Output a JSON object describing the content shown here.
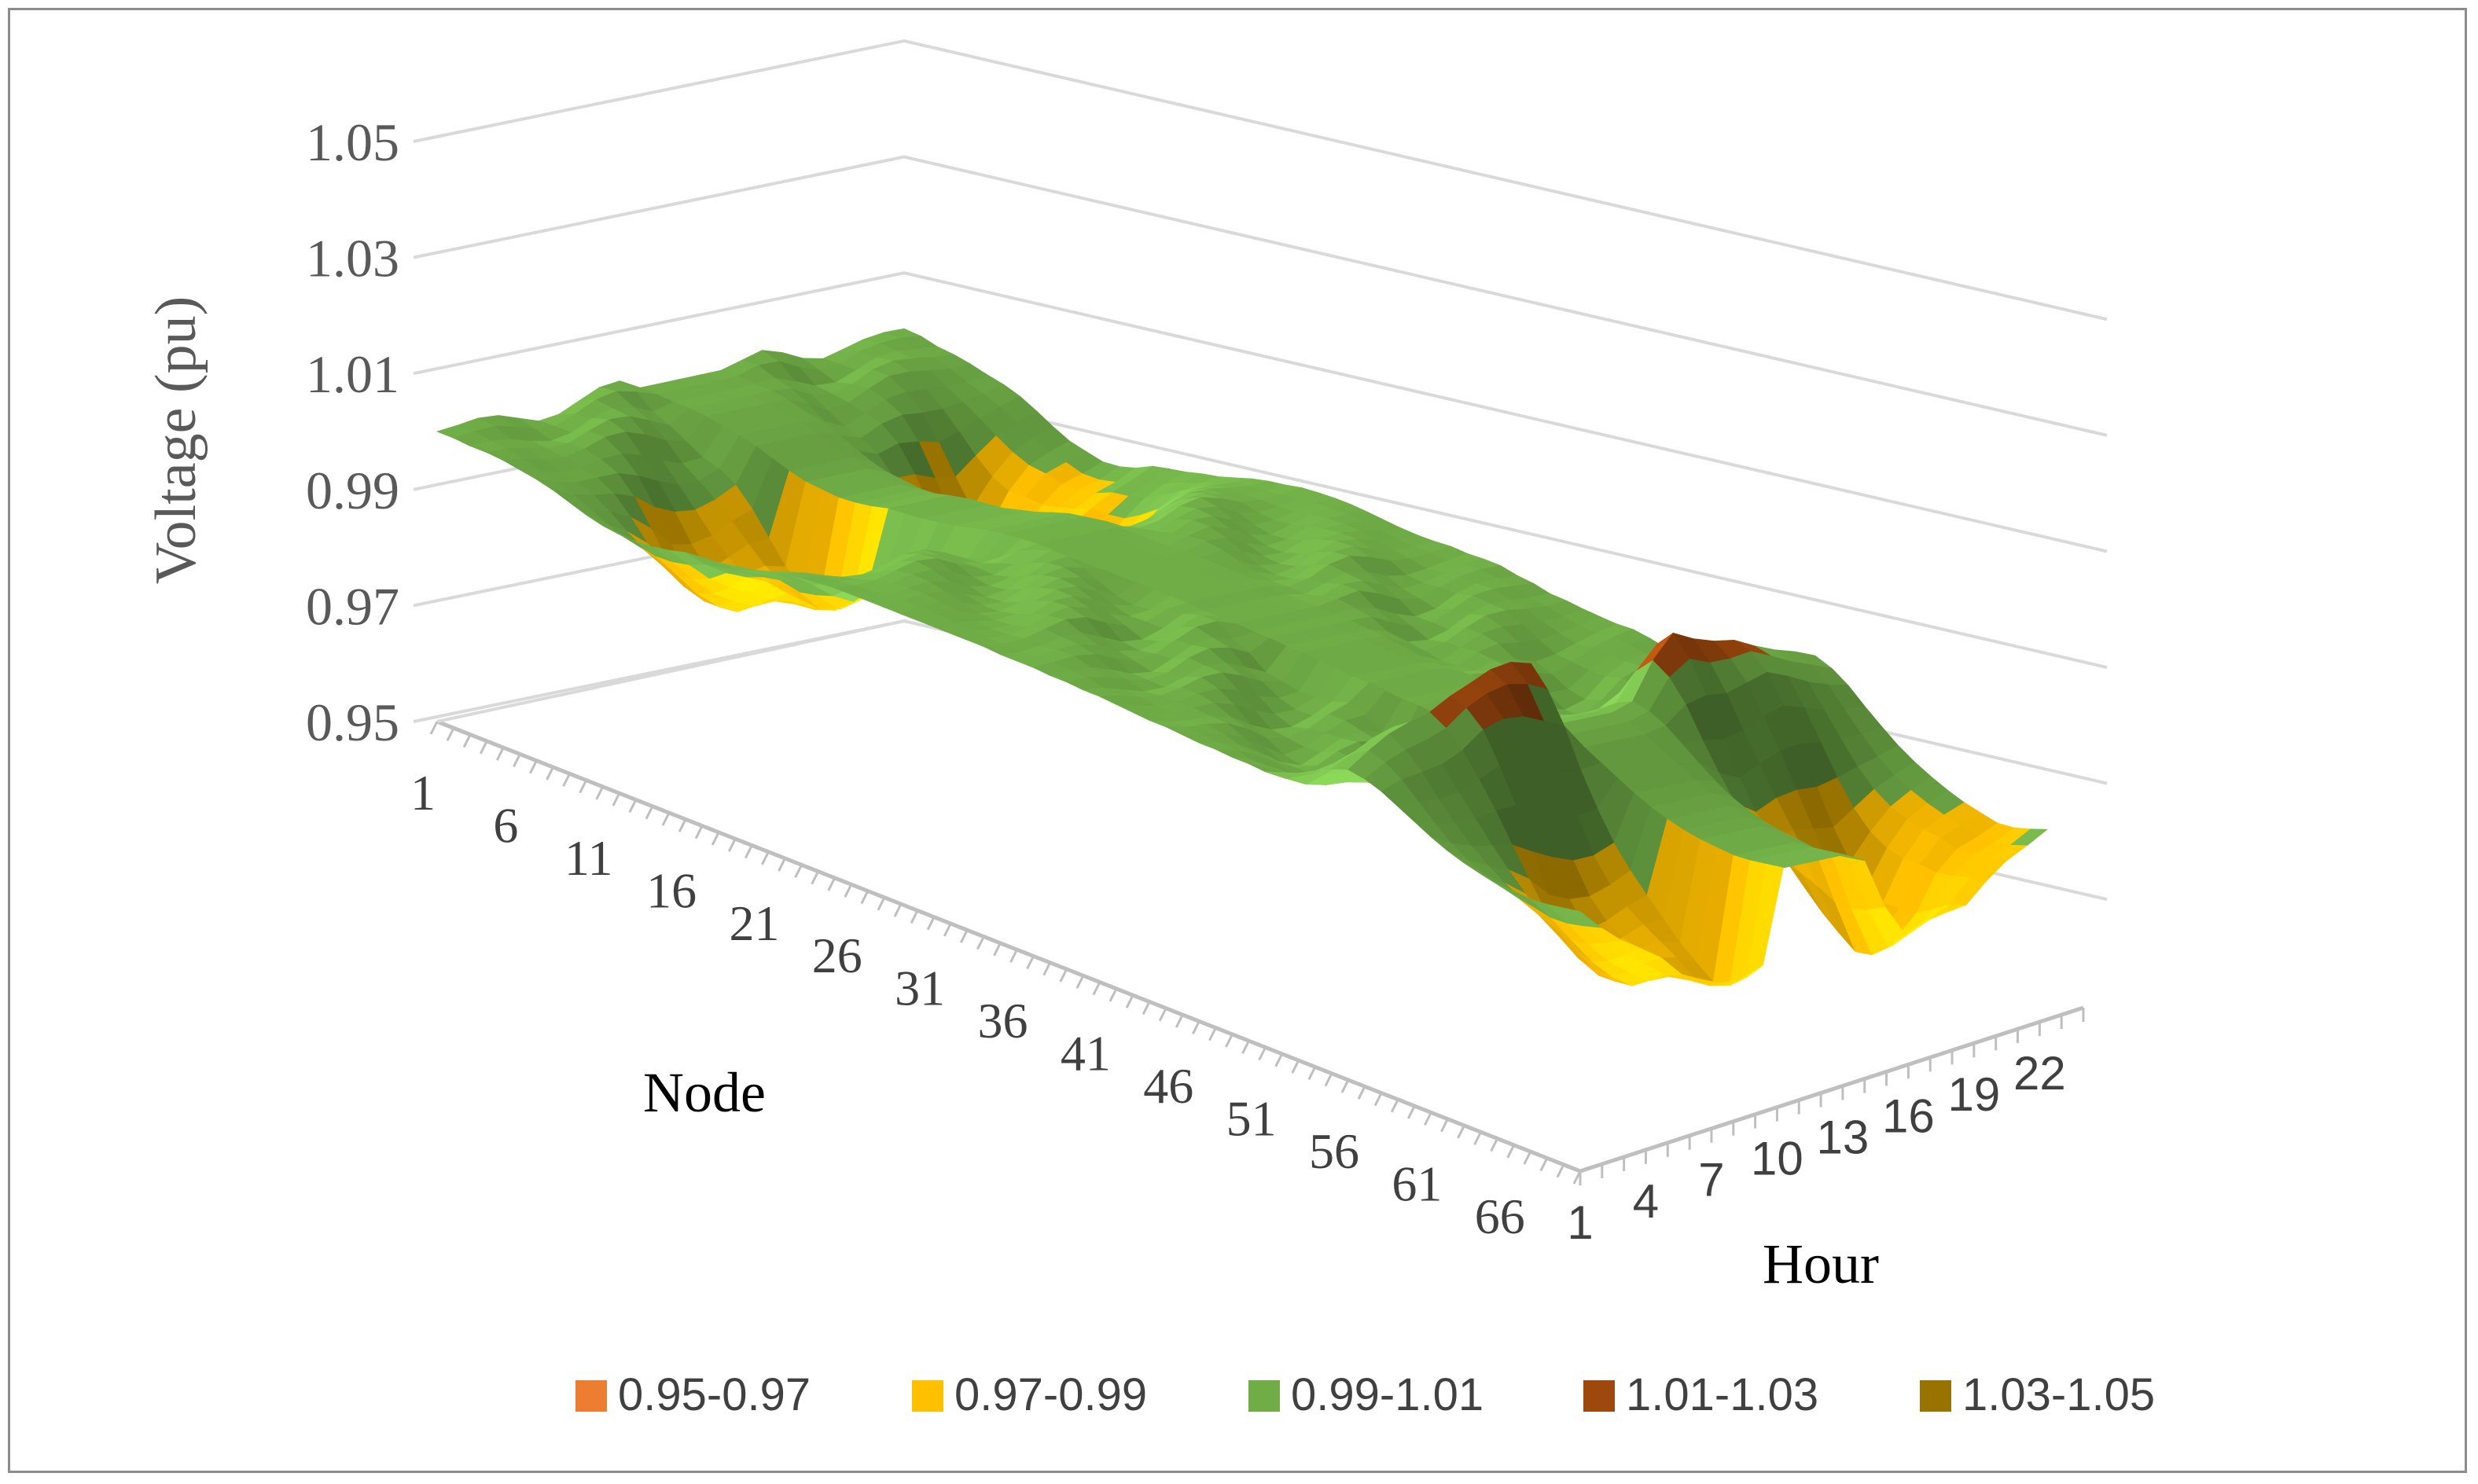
{
  "chart_data": {
    "type": "surface",
    "ylabel": "Voltage (pu)",
    "node_axis_label": "Node",
    "hour_axis_label": "Hour",
    "zlim": [
      0.95,
      1.05
    ],
    "z_ticks": [
      "0.95",
      "0.97",
      "0.99",
      "1.01",
      "1.03",
      "1.05"
    ],
    "node_ticks": [
      "1",
      "6",
      "11",
      "16",
      "21",
      "26",
      "31",
      "36",
      "41",
      "46",
      "51",
      "56",
      "61",
      "66"
    ],
    "hour_ticks": [
      "1",
      "4",
      "7",
      "10",
      "13",
      "16",
      "19",
      "22"
    ],
    "legend": [
      {
        "label": "0.95-0.97",
        "color": "#ED7D31"
      },
      {
        "label": "0.97-0.99",
        "color": "#FFC000"
      },
      {
        "label": "0.99-1.01",
        "color": "#70AD47"
      },
      {
        "label": "1.01-1.03",
        "color": "#9E480E"
      },
      {
        "label": "1.03-1.05",
        "color": "#997300"
      }
    ],
    "node_profile": [
      1.0,
      1.0,
      0.999,
      0.999,
      0.998,
      0.996,
      0.994,
      0.991,
      0.987,
      0.983,
      0.98,
      0.979,
      0.978,
      0.979,
      0.981,
      0.984,
      0.985,
      0.986,
      0.988,
      0.99,
      0.993,
      0.996,
      0.998,
      0.999,
      1.0,
      1.0,
      1.0,
      1.0,
      1.0,
      1.0,
      1.0,
      1.0,
      1.0,
      1.0,
      0.999,
      0.999,
      0.999,
      0.998,
      0.998,
      0.997,
      0.997,
      0.996,
      0.995,
      0.994,
      0.994,
      0.993,
      0.992,
      0.992,
      0.991,
      0.991,
      0.99,
      0.994,
      0.998,
      1.004,
      1.01,
      1.014,
      1.012,
      1.008,
      1.002,
      0.996,
      0.99,
      0.985,
      0.981,
      0.978,
      0.976,
      0.975,
      0.974,
      0.975,
      0.977,
      0.979
    ],
    "hour_profile": [
      0.0,
      0.2,
      0.4,
      0.6,
      0.8,
      1.0,
      1.0,
      1.0,
      1.0,
      1.0,
      0.0,
      0.0,
      0.0,
      0.0,
      0.1,
      0.6,
      1.0,
      1.0,
      1.0,
      0.9,
      0.6,
      0.4,
      0.3,
      0.2
    ]
  }
}
